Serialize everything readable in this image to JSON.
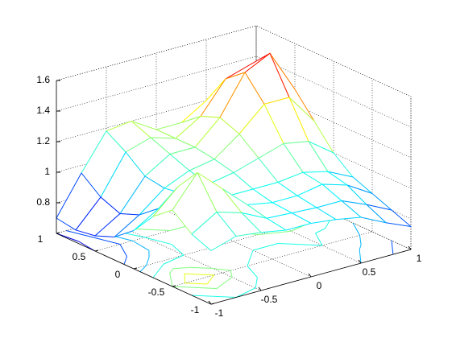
{
  "chart_data": {
    "type": "mesh",
    "x": [
      -1,
      -0.75,
      -0.5,
      -0.25,
      0,
      0.25,
      0.5,
      0.75,
      1
    ],
    "y": [
      -1,
      -0.75,
      -0.5,
      -0.25,
      0,
      0.25,
      0.5,
      0.75,
      1
    ],
    "z": [
      [
        0.95,
        1.0,
        0.98,
        0.95,
        0.95,
        0.93,
        0.9,
        0.82,
        0.75
      ],
      [
        1.0,
        1.1,
        1.05,
        0.97,
        0.96,
        0.95,
        0.95,
        0.88,
        0.8
      ],
      [
        1.1,
        1.3,
        1.15,
        1.0,
        0.97,
        0.97,
        1.0,
        0.95,
        0.85
      ],
      [
        1.0,
        1.15,
        1.05,
        1.0,
        1.0,
        1.0,
        1.02,
        0.98,
        0.9
      ],
      [
        0.85,
        0.95,
        1.0,
        1.02,
        1.05,
        1.1,
        1.15,
        1.12,
        1.0
      ],
      [
        0.75,
        0.85,
        0.98,
        1.05,
        1.08,
        1.2,
        1.35,
        1.35,
        1.15
      ],
      [
        0.7,
        0.8,
        1.0,
        1.1,
        1.1,
        1.25,
        1.5,
        1.58,
        1.3
      ],
      [
        0.68,
        0.85,
        1.1,
        1.15,
        1.1,
        1.2,
        1.4,
        1.45,
        1.25
      ],
      [
        0.7,
        0.95,
        1.18,
        1.2,
        1.1,
        1.1,
        1.2,
        1.25,
        1.1
      ]
    ],
    "xlim": [
      -1,
      1
    ],
    "xticks": [
      -1,
      -0.5,
      0,
      0.5,
      1
    ],
    "ylim": [
      -1,
      1
    ],
    "yticks": [
      -1,
      -0.5,
      0,
      0.5,
      1
    ],
    "zlim": [
      0.6,
      1.6
    ],
    "zticks": [
      0.8,
      1,
      1.2,
      1.4,
      1.6
    ],
    "grid": true,
    "colormap": "jet",
    "contour": true
  }
}
